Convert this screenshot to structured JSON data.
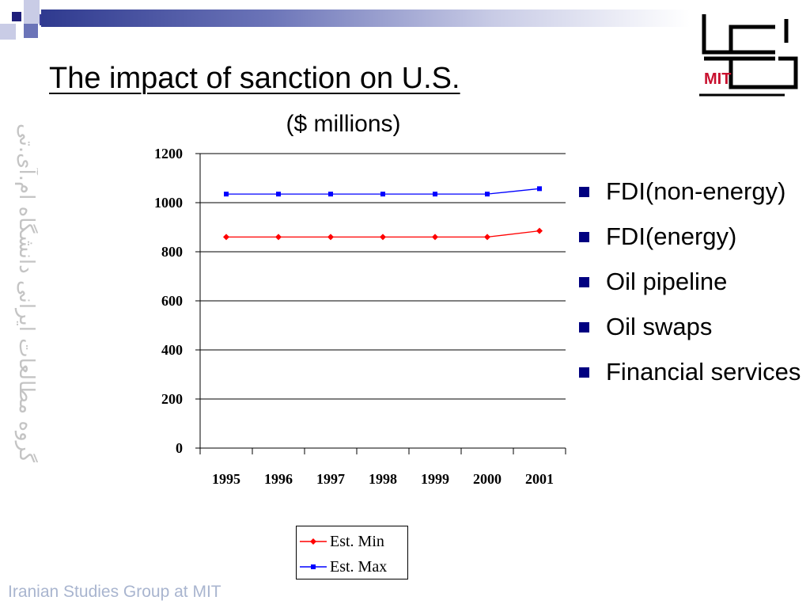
{
  "slide": {
    "title": "The impact of sanction on U.S.",
    "subtitle": "($ millions)",
    "side_text": "گروه مطالعات ایرانی دانشگاه ام.آی.تی",
    "footer": "Iranian Studies Group at MIT",
    "logo_text": "MIT",
    "bullets": [
      "FDI(non-energy)",
      "FDI(energy)",
      "Oil pipeline",
      "Oil swaps",
      "Financial services"
    ]
  },
  "colors": {
    "accent": "#000080",
    "series_min": "#ff0000",
    "series_max": "#0000ff",
    "logo_red": "#c8102e"
  },
  "chart_data": {
    "type": "line",
    "categories": [
      "1995",
      "1996",
      "1997",
      "1998",
      "1999",
      "2000",
      "2001"
    ],
    "series": [
      {
        "name": "Est. Min",
        "values": [
          860,
          860,
          860,
          860,
          860,
          860,
          885
        ],
        "color": "#ff0000",
        "marker": "diamond"
      },
      {
        "name": "Est. Max",
        "values": [
          1035,
          1035,
          1035,
          1035,
          1035,
          1035,
          1057
        ],
        "color": "#0000ff",
        "marker": "square"
      }
    ],
    "ylim": [
      0,
      1200
    ],
    "yticks": [
      "0",
      "200",
      "400",
      "600",
      "800",
      "1000",
      "1200"
    ],
    "grid": true,
    "legend": "bottom"
  }
}
